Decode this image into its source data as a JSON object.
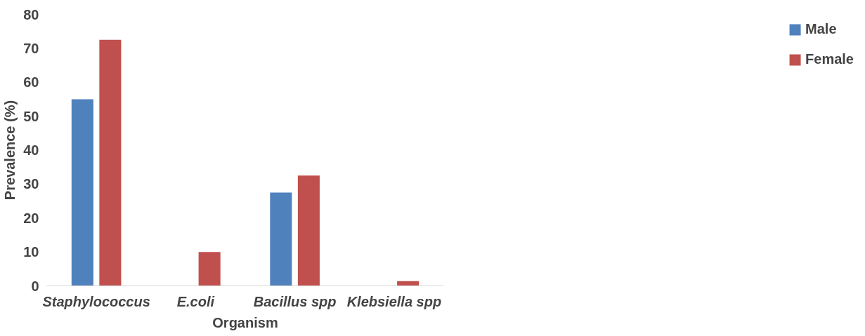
{
  "chart_data": {
    "type": "bar",
    "xlabel": "Organism",
    "ylabel": "Prevalence (%)",
    "categories": [
      "Staphylococcus",
      "E.coli",
      "Bacillus spp",
      "Klebsiella spp"
    ],
    "series": [
      {
        "name": "Male",
        "color": "#4f81bd",
        "values": [
          55,
          0,
          27.5,
          0
        ]
      },
      {
        "name": "Female",
        "color": "#c0504d",
        "values": [
          72.5,
          10,
          32.5,
          1.4
        ]
      }
    ],
    "ylim": [
      0,
      80
    ],
    "yticks": [
      0,
      10,
      20,
      30,
      40,
      50,
      60,
      70,
      80
    ],
    "grid": false,
    "legend": "right"
  }
}
